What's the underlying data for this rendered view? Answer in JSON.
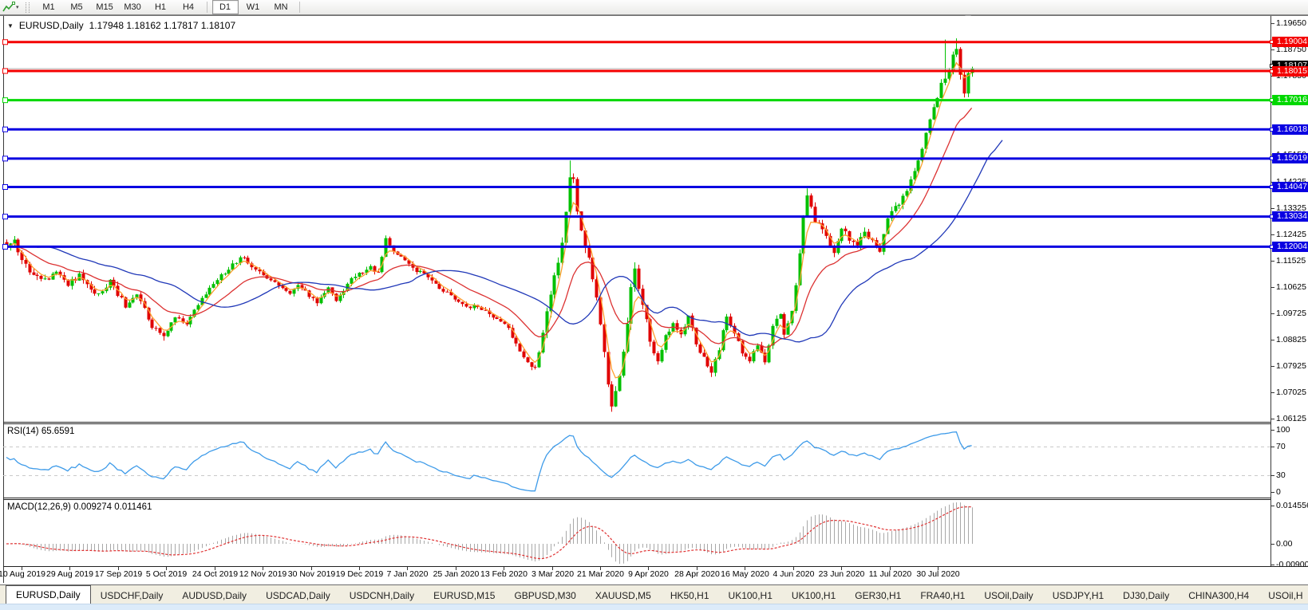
{
  "toolbar": {
    "timeframes": [
      "M1",
      "M5",
      "M15",
      "M30",
      "H1",
      "H4",
      "D1",
      "W1",
      "MN"
    ],
    "active_timeframe": "D1",
    "chart_tool_icon": "chart-line-icon",
    "dropdown_caret": "▾"
  },
  "chart_header": {
    "collapse_glyph": "▼",
    "title": "EURUSD,Daily",
    "values": "1.17948 1.18162 1.17817 1.18107"
  },
  "price_axis_ticks": [
    1.1965,
    1.1875,
    1.1785,
    1.1695,
    1.1605,
    1.1515,
    1.14225,
    1.13325,
    1.12425,
    1.11525,
    1.10625,
    1.09725,
    1.08825,
    1.07925,
    1.07025,
    1.06125
  ],
  "hlines": [
    {
      "price": 1.19004,
      "label": "1.19004",
      "color": "#f40000"
    },
    {
      "price": 1.18015,
      "label": "1.18015",
      "color": "#f40000"
    },
    {
      "price": 1.17016,
      "label": "1.17016",
      "color": "#00d800"
    },
    {
      "price": 1.16018,
      "label": "1.16018",
      "color": "#0a00e1"
    },
    {
      "price": 1.15019,
      "label": "1.15019",
      "color": "#0a00e1"
    },
    {
      "price": 1.14047,
      "label": "1.14047",
      "color": "#0a00e1"
    },
    {
      "price": 1.13034,
      "label": "1.13034",
      "color": "#0a00e1"
    },
    {
      "price": 1.12004,
      "label": "1.12004",
      "color": "#0a00e1"
    }
  ],
  "bid_line": {
    "price": 1.18107,
    "label": "1.18107",
    "line_color": "#b2b2b2",
    "tag_bg": "#000000"
  },
  "rsi_panel": {
    "label": "RSI(14) 65.6591",
    "ticks": [
      100,
      70,
      30,
      0
    ],
    "upper_level": 70,
    "lower_level": 30,
    "line_color": "#3e9be9"
  },
  "macd_panel": {
    "label": "MACD(12,26,9) 0.009274 0.011461",
    "ticks": [
      "0.014556",
      "0.00",
      "-0.009001"
    ],
    "hist_color": "#a8a8a8",
    "signal_color": "#e03232"
  },
  "date_axis": [
    "10 Aug 2019",
    "29 Aug 2019",
    "17 Sep 2019",
    "5 Oct 2019",
    "24 Oct 2019",
    "12 Nov 2019",
    "30 Nov 2019",
    "19 Dec 2019",
    "7 Jan 2020",
    "25 Jan 2020",
    "13 Feb 2020",
    "3 Mar 2020",
    "21 Mar 2020",
    "9 Apr 2020",
    "28 Apr 2020",
    "16 May 2020",
    "4 Jun 2020",
    "23 Jun 2020",
    "11 Jul 2020",
    "30 Jul 2020"
  ],
  "tabs": {
    "items": [
      {
        "label": "EURUSD,Daily",
        "active": true
      },
      {
        "label": "USDCHF,Daily",
        "active": false
      },
      {
        "label": "AUDUSD,Daily",
        "active": false
      },
      {
        "label": "USDCAD,Daily",
        "active": false
      },
      {
        "label": "USDCNH,Daily",
        "active": false
      },
      {
        "label": "EURUSD,M15",
        "active": false
      },
      {
        "label": "GBPUSD,M30",
        "active": false
      },
      {
        "label": "XAUUSD,M5",
        "active": false
      },
      {
        "label": "HK50,H1",
        "active": false
      },
      {
        "label": "UK100,H1",
        "active": false
      },
      {
        "label": "UK100,H1",
        "active": false
      },
      {
        "label": "GER30,H1",
        "active": false
      },
      {
        "label": "FRA40,H1",
        "active": false
      },
      {
        "label": "USOil,Daily",
        "active": false
      },
      {
        "label": "USDJPY,H1",
        "active": false
      },
      {
        "label": "DJ30,Daily",
        "active": false
      },
      {
        "label": "CHINA300,H4",
        "active": false
      },
      {
        "label": "USOil,H",
        "active": false
      }
    ],
    "scroll_left": "◄",
    "scroll_right": "►"
  },
  "chart_data": {
    "type": "candlestick",
    "symbol": "EURUSD",
    "period": "Daily",
    "title": "EURUSD,Daily",
    "last_ohlc": {
      "open": 1.17948,
      "high": 1.18162,
      "low": 1.17817,
      "close": 1.18107
    },
    "x_labels": [
      "10 Aug 2019",
      "29 Aug 2019",
      "17 Sep 2019",
      "5 Oct 2019",
      "24 Oct 2019",
      "12 Nov 2019",
      "30 Nov 2019",
      "19 Dec 2019",
      "7 Jan 2020",
      "25 Jan 2020",
      "13 Feb 2020",
      "3 Mar 2020",
      "21 Mar 2020",
      "9 Apr 2020",
      "28 Apr 2020",
      "16 May 2020",
      "4 Jun 2020",
      "23 Jun 2020",
      "11 Jul 2020",
      "30 Jul 2020"
    ],
    "y_range": [
      1.06,
      1.199
    ],
    "bars_total": 253,
    "up_color": "#00c000",
    "down_color": "#e00000",
    "price_anchors": [
      [
        0,
        1.12
      ],
      [
        2,
        1.1215
      ],
      [
        4,
        1.116
      ],
      [
        7,
        1.11
      ],
      [
        10,
        1.1085
      ],
      [
        13,
        1.112
      ],
      [
        16,
        1.1075
      ],
      [
        19,
        1.11
      ],
      [
        22,
        1.106
      ],
      [
        24,
        1.1035
      ],
      [
        27,
        1.1085
      ],
      [
        31,
        1.0995
      ],
      [
        34,
        1.104
      ],
      [
        38,
        1.093
      ],
      [
        41,
        1.089
      ],
      [
        44,
        1.096
      ],
      [
        47,
        1.0935
      ],
      [
        50,
        1.1
      ],
      [
        53,
        1.106
      ],
      [
        56,
        1.11
      ],
      [
        59,
        1.114
      ],
      [
        62,
        1.1165
      ],
      [
        65,
        1.112
      ],
      [
        68,
        1.109
      ],
      [
        71,
        1.107
      ],
      [
        74,
        1.104
      ],
      [
        76,
        1.1075
      ],
      [
        79,
        1.1035
      ],
      [
        81,
        1.101
      ],
      [
        84,
        1.106
      ],
      [
        86,
        1.102
      ],
      [
        89,
        1.1075
      ],
      [
        92,
        1.111
      ],
      [
        95,
        1.113
      ],
      [
        97,
        1.111
      ],
      [
        99,
        1.1225
      ],
      [
        101,
        1.119
      ],
      [
        104,
        1.115
      ],
      [
        107,
        1.112
      ],
      [
        110,
        1.1095
      ],
      [
        113,
        1.106
      ],
      [
        117,
        1.1025
      ],
      [
        120,
        1.1
      ],
      [
        124,
        1.099
      ],
      [
        127,
        1.0965
      ],
      [
        130,
        1.094
      ],
      [
        133,
        1.087
      ],
      [
        136,
        1.08
      ],
      [
        138,
        1.079
      ],
      [
        140,
        1.09
      ],
      [
        142,
        1.104
      ],
      [
        144,
        1.114
      ],
      [
        146,
        1.131
      ],
      [
        147,
        1.1445
      ],
      [
        148,
        1.143
      ],
      [
        149,
        1.133
      ],
      [
        151,
        1.121
      ],
      [
        153,
        1.109
      ],
      [
        155,
        1.094
      ],
      [
        157,
        1.072
      ],
      [
        158,
        1.065
      ],
      [
        159,
        1.07
      ],
      [
        161,
        1.083
      ],
      [
        163,
        1.105
      ],
      [
        164,
        1.114
      ],
      [
        166,
        1.1
      ],
      [
        168,
        1.088
      ],
      [
        170,
        1.081
      ],
      [
        172,
        1.089
      ],
      [
        174,
        1.0935
      ],
      [
        176,
        1.09
      ],
      [
        178,
        1.097
      ],
      [
        180,
        1.086
      ],
      [
        182,
        1.083
      ],
      [
        184,
        1.077
      ],
      [
        186,
        1.085
      ],
      [
        188,
        1.097
      ],
      [
        190,
        1.0905
      ],
      [
        192,
        1.084
      ],
      [
        194,
        1.0815
      ],
      [
        196,
        1.0855
      ],
      [
        198,
        1.0805
      ],
      [
        200,
        1.0925
      ],
      [
        202,
        1.0975
      ],
      [
        203,
        1.0905
      ],
      [
        205,
        1.0985
      ],
      [
        206,
        1.106
      ],
      [
        207,
        1.118
      ],
      [
        208,
        1.13
      ],
      [
        209,
        1.137
      ],
      [
        211,
        1.129
      ],
      [
        213,
        1.125
      ],
      [
        216,
        1.118
      ],
      [
        218,
        1.126
      ],
      [
        220,
        1.123
      ],
      [
        222,
        1.1215
      ],
      [
        224,
        1.125
      ],
      [
        226,
        1.1225
      ],
      [
        228,
        1.118
      ],
      [
        230,
        1.13
      ],
      [
        232,
        1.133
      ],
      [
        234,
        1.138
      ],
      [
        236,
        1.142
      ],
      [
        238,
        1.15
      ],
      [
        240,
        1.158
      ],
      [
        242,
        1.168
      ],
      [
        244,
        1.176
      ],
      [
        245,
        1.178
      ],
      [
        246,
        1.18
      ],
      [
        247,
        1.186
      ],
      [
        248,
        1.1875
      ],
      [
        249,
        1.179
      ],
      [
        250,
        1.1735
      ],
      [
        251,
        1.1785
      ],
      [
        252,
        1.1811
      ]
    ],
    "wick_overrides": {
      "41": {
        "low": 1.0879
      },
      "99": {
        "high": 1.1239
      },
      "137": {
        "low": 1.0778
      },
      "147": {
        "high": 1.1495
      },
      "158": {
        "low": 1.0636
      },
      "164": {
        "high": 1.1147
      },
      "184": {
        "low": 1.0755
      },
      "209": {
        "high": 1.14
      },
      "245": {
        "high": 1.1909
      },
      "248": {
        "high": 1.1913
      },
      "250": {
        "low": 1.1711
      },
      "252": {
        "open": 1.17948,
        "high": 1.18162,
        "low": 1.17817,
        "close": 1.18107
      }
    },
    "horizontal_levels": [
      1.19004,
      1.18015,
      1.17016,
      1.16018,
      1.15019,
      1.14047,
      1.13034,
      1.12004
    ],
    "bid": 1.18107,
    "moving_averages": [
      {
        "name": "fast",
        "color": "#ffa030",
        "period": 4,
        "shift_bars": 0
      },
      {
        "name": "medium",
        "color": "#dc3232",
        "period": 18,
        "shift_bars": 0
      },
      {
        "name": "slow",
        "color": "#2038b8",
        "period": 30,
        "shift_bars": 8
      }
    ],
    "rsi": {
      "period": 14,
      "last_value": 65.6591
    },
    "macd": {
      "fast": 12,
      "slow": 26,
      "signal": 9,
      "last_values": [
        0.009274,
        0.011461
      ]
    }
  }
}
